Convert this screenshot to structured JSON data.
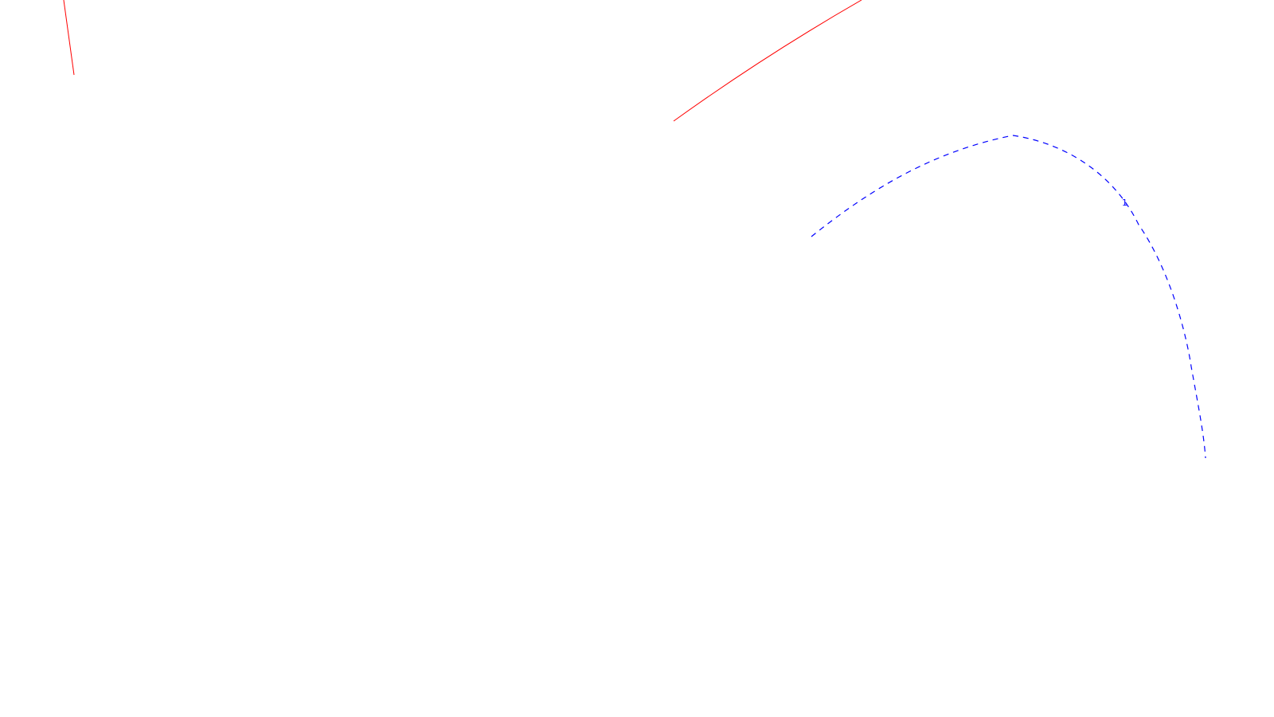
{
  "drawing": {
    "background": "#ffffff",
    "curves": [
      {
        "id": "red-curve-left",
        "color": "#ff0000",
        "style": "solid"
      },
      {
        "id": "red-curve-top",
        "color": "#ff0000",
        "style": "solid"
      },
      {
        "id": "blue-curve-arc",
        "color": "#0000ff",
        "style": "dashed",
        "label": "1"
      }
    ]
  }
}
